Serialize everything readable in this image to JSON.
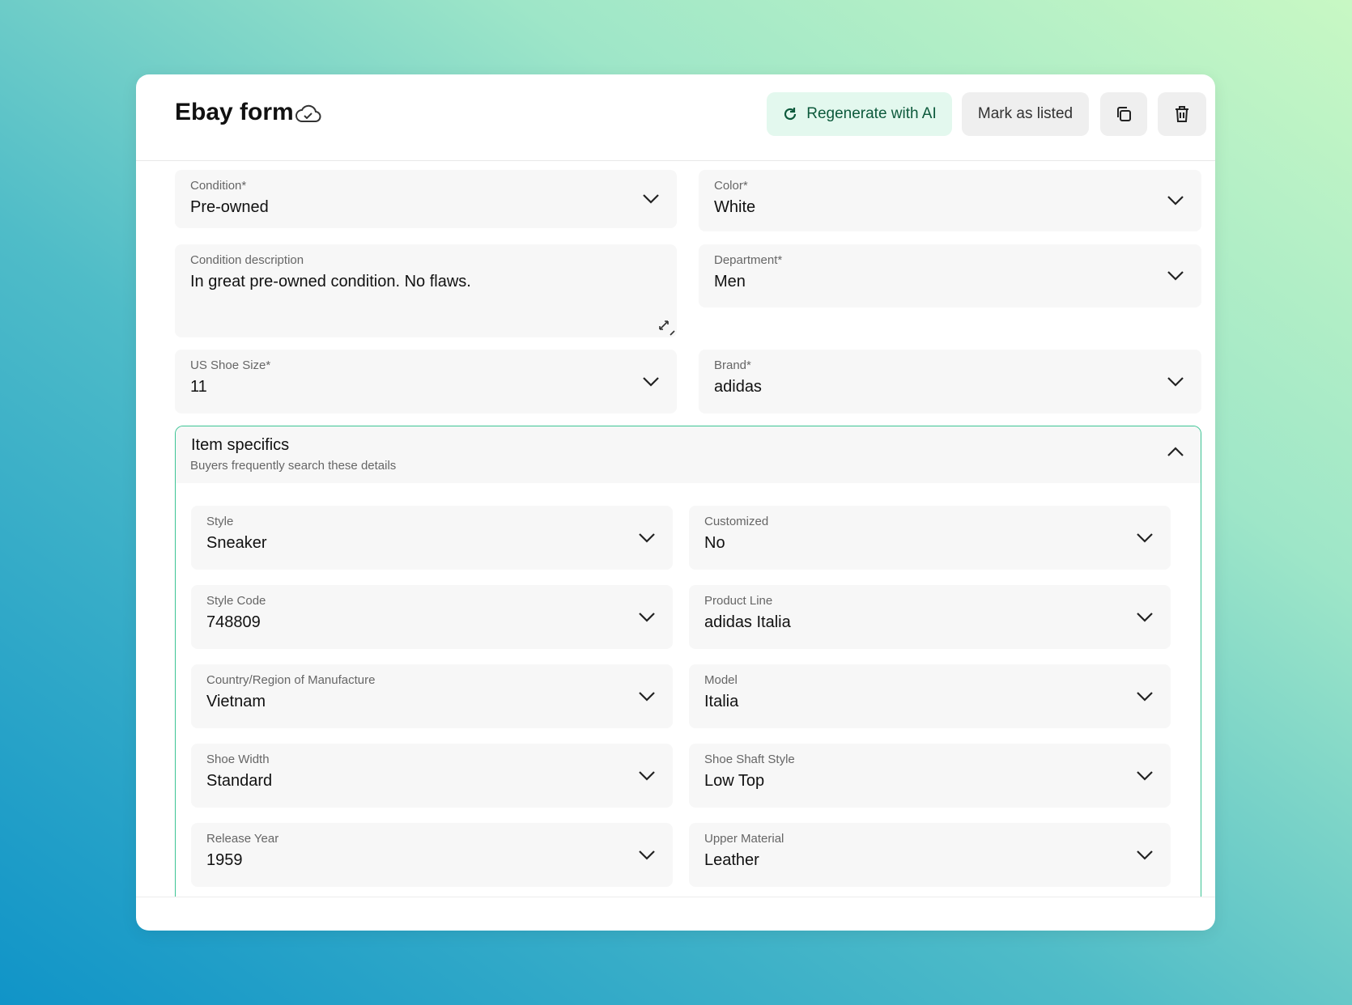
{
  "header": {
    "title": "Ebay form",
    "buttons": [
      "Regenerate with AI",
      "Mark as listed"
    ]
  },
  "fields": [
    {
      "label": "Condition*",
      "value": "Pre-owned"
    },
    {
      "label": "Color*",
      "value": "White"
    },
    {
      "label": "Condition description",
      "value": "In great pre-owned condition. No flaws."
    },
    {
      "label": "Department*",
      "value": "Men"
    },
    {
      "label": "US Shoe Size*",
      "value": "11"
    },
    {
      "label": "Brand*",
      "value": "adidas"
    }
  ],
  "item_specifics": {
    "title": "Item specifics",
    "subtitle": "Buyers frequently search these details",
    "fields": [
      {
        "label": "Style",
        "value": "Sneaker"
      },
      {
        "label": "Customized",
        "value": "No"
      },
      {
        "label": "Style Code",
        "value": "748809"
      },
      {
        "label": "Product Line",
        "value": "adidas Italia"
      },
      {
        "label": "Country/Region of Manufacture",
        "value": "Vietnam"
      },
      {
        "label": "Model",
        "value": "Italia"
      },
      {
        "label": "Shoe Width",
        "value": "Standard"
      },
      {
        "label": "Shoe Shaft Style",
        "value": "Low Top"
      },
      {
        "label": "Release Year",
        "value": "1959"
      },
      {
        "label": "Upper Material",
        "value": "Leather"
      }
    ]
  }
}
